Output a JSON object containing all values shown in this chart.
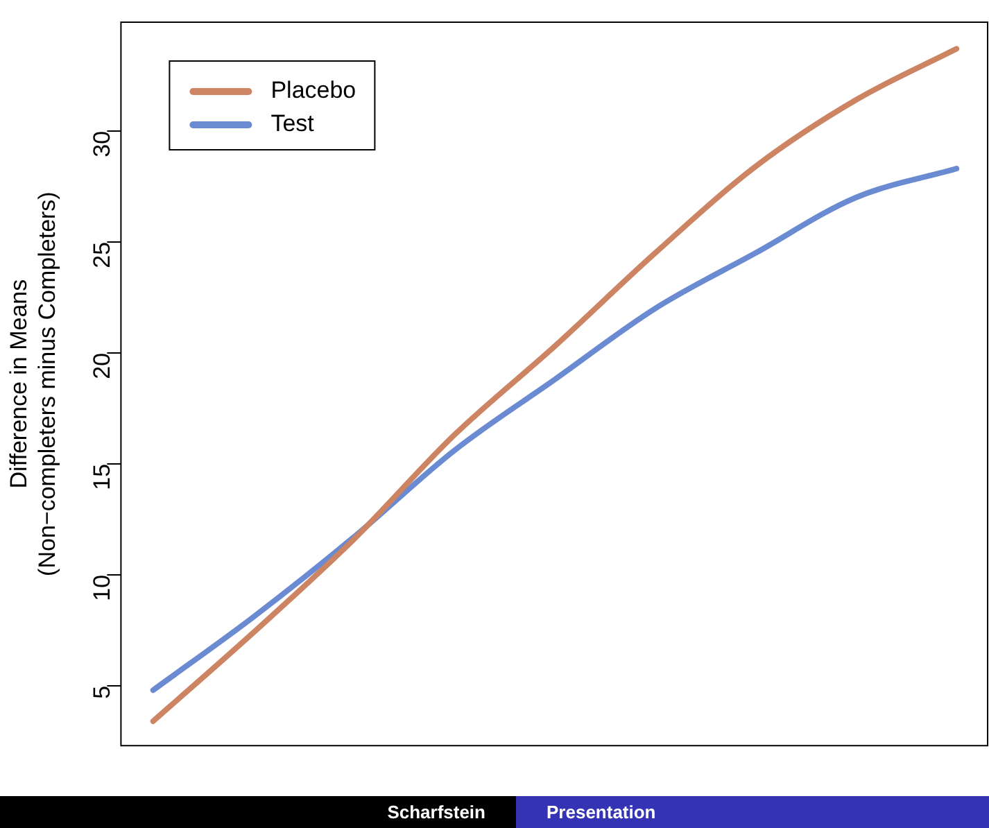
{
  "chart_data": {
    "type": "line",
    "ylabel": "Difference in Means\n(Non−completers minus Completers)",
    "categories": [
      null,
      null,
      null,
      null,
      null,
      null,
      null,
      null,
      null
    ],
    "series": [
      {
        "name": "Placebo",
        "color": "#cd8462",
        "values": [
          3.4,
          7.4,
          11.6,
          16.3,
          20.3,
          24.5,
          28.4,
          31.4,
          33.7
        ]
      },
      {
        "name": "Test",
        "color": "#6a8bd2",
        "values": [
          4.8,
          8.1,
          11.7,
          15.6,
          18.8,
          22.0,
          24.5,
          27.0,
          28.3
        ]
      }
    ],
    "ylim": [
      2.3,
      34.9
    ],
    "yticks": [
      5,
      10,
      15,
      20,
      25,
      30
    ],
    "grid": false,
    "legend": "top left",
    "marker": "none",
    "line_style": "solid",
    "annotations": [
      "Scharfstein",
      "Presentation"
    ]
  }
}
